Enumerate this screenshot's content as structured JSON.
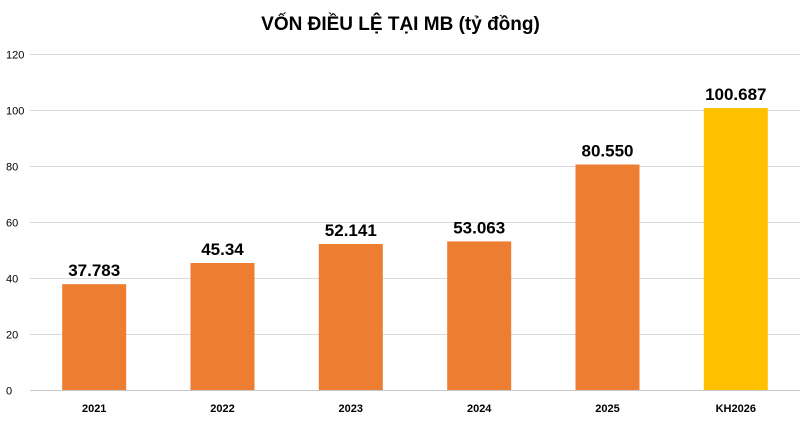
{
  "chart_data": {
    "type": "bar",
    "title": "VỐN ĐIỀU LỆ TẠI MB (tỷ đồng)",
    "categories": [
      "2021",
      "2022",
      "2023",
      "2024",
      "2025",
      "KH2026"
    ],
    "values": [
      37.783,
      45.34,
      52.141,
      53.063,
      80.55,
      100.687
    ],
    "data_labels": [
      "37.783",
      "45.34",
      "52.141",
      "53.063",
      "80.550",
      "100.687"
    ],
    "bar_colors": [
      "#ED7D31",
      "#ED7D31",
      "#ED7D31",
      "#ED7D31",
      "#ED7D31",
      "#FFC000"
    ],
    "ylim": [
      0,
      120
    ],
    "yticks": [
      0,
      20,
      40,
      60,
      80,
      100,
      120
    ],
    "xlabel": "",
    "ylabel": "",
    "grid": true,
    "legend": "none"
  }
}
